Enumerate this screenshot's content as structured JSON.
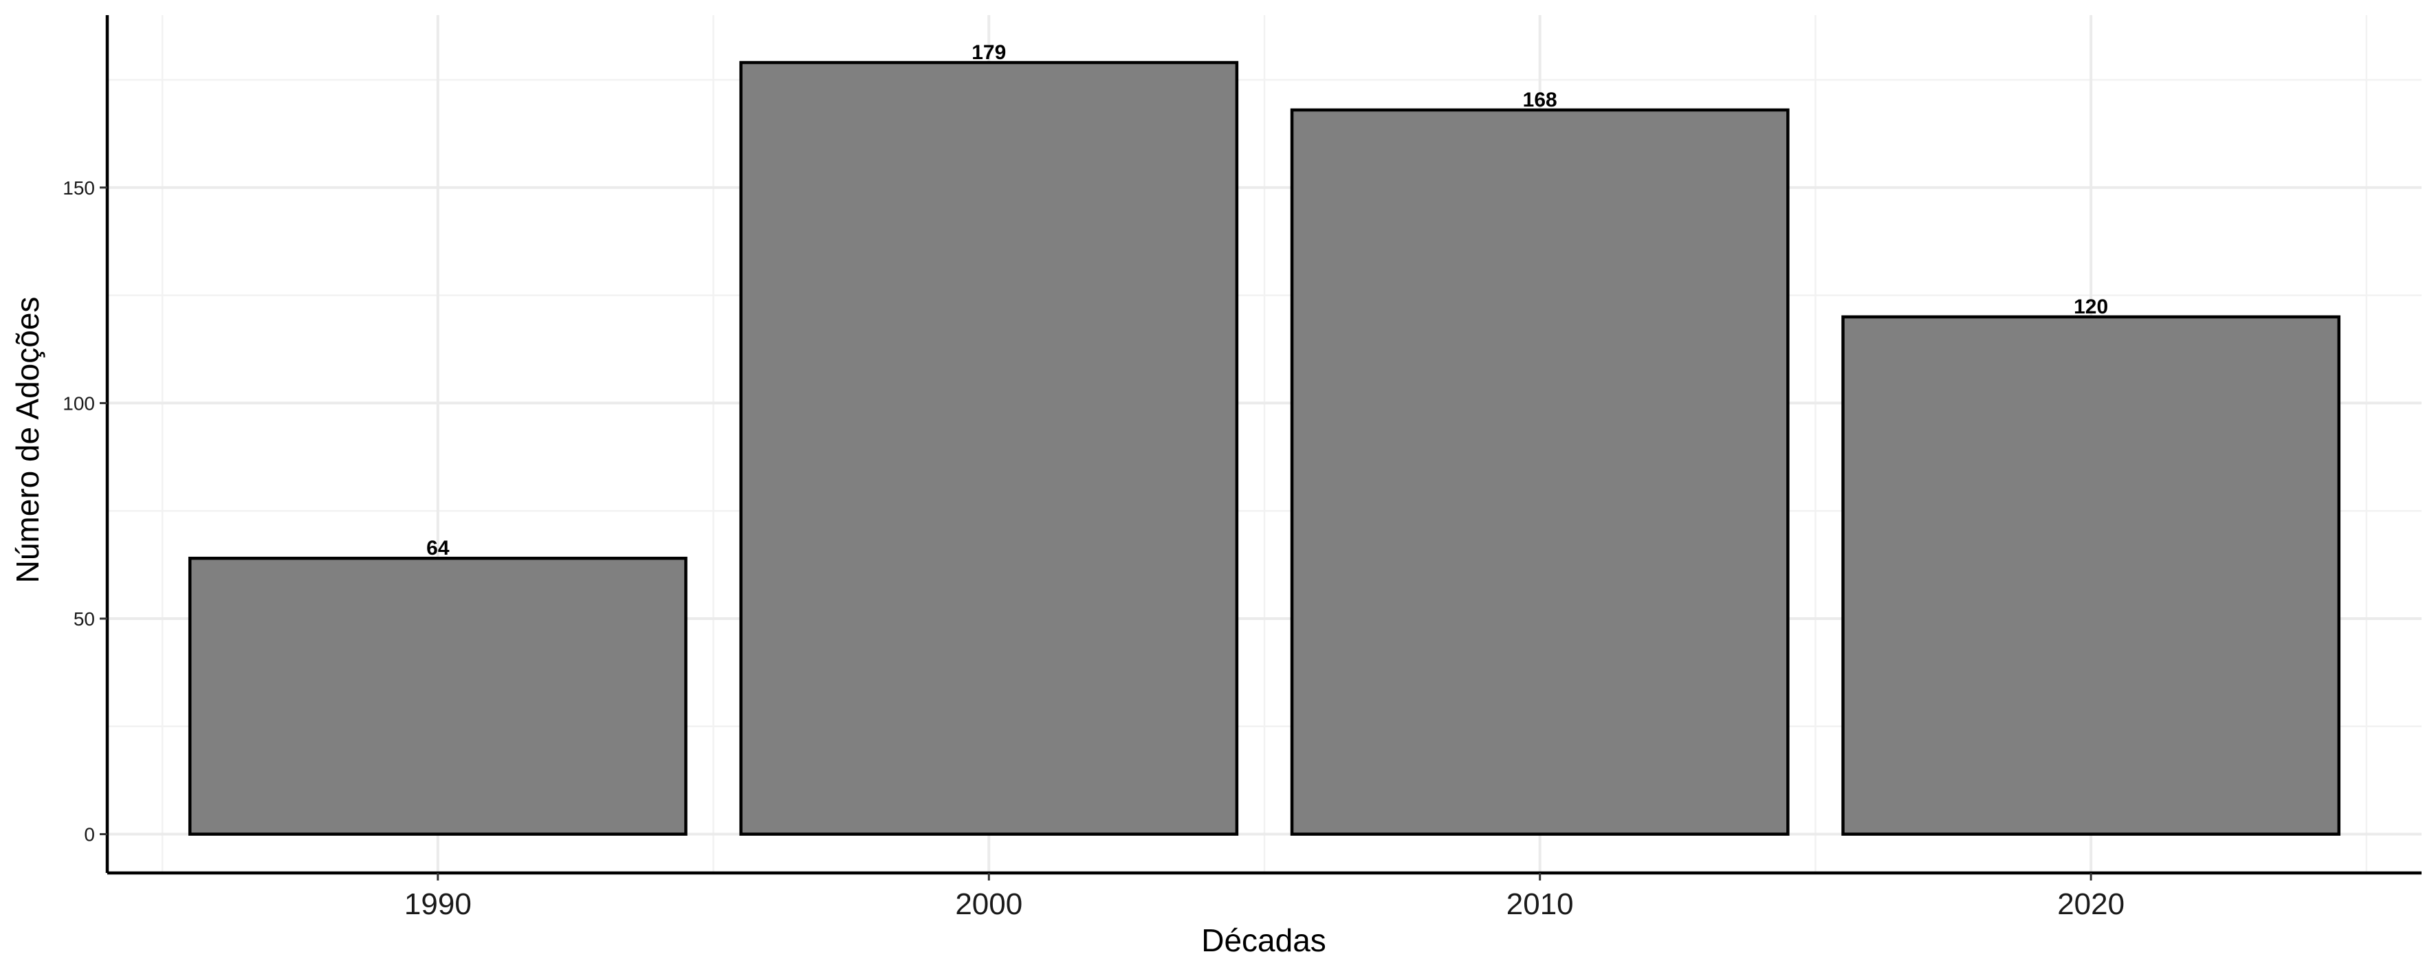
{
  "chart_data": {
    "type": "bar",
    "categories": [
      "1990",
      "2000",
      "2010",
      "2020"
    ],
    "values": [
      64,
      179,
      168,
      120
    ],
    "data_labels": [
      "64",
      "179",
      "168",
      "120"
    ],
    "title": "",
    "xlabel": "Décadas",
    "ylabel": "Número de Adoções",
    "ylim": [
      -9,
      190
    ],
    "yticks": [
      0,
      50,
      100,
      150
    ],
    "ytick_labels": [
      "0",
      "50",
      "100",
      "150"
    ],
    "grid": true,
    "legend": "none",
    "colors": {
      "bar_fill": "#808080",
      "bar_outline": "#000000",
      "grid": "#ebebeb",
      "background": "#ffffff"
    }
  }
}
